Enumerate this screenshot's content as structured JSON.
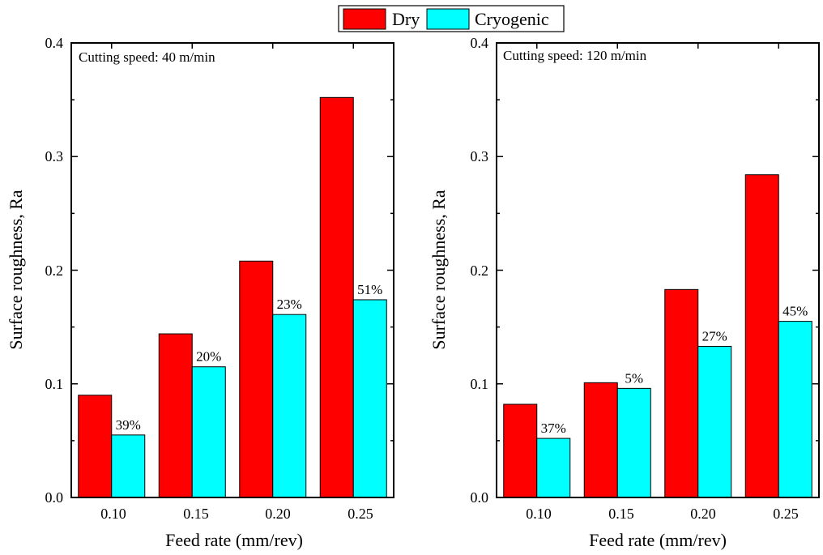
{
  "legend": {
    "items": [
      {
        "label": "Dry",
        "color": "#ff0000"
      },
      {
        "label": "Cryogenic",
        "color": "#00ffff"
      }
    ],
    "position": "top-center"
  },
  "chart_data": [
    {
      "type": "bar",
      "annotation": "Cutting speed: 40 m/min",
      "xlabel": "Feed rate (mm/rev)",
      "ylabel": "Surface roughness, Ra",
      "categories": [
        "0.10",
        "0.15",
        "0.20",
        "0.25"
      ],
      "series": [
        {
          "name": "Dry",
          "color": "#ff0000",
          "values": [
            0.09,
            0.144,
            0.208,
            0.352
          ]
        },
        {
          "name": "Cryogenic",
          "color": "#00ffff",
          "values": [
            0.055,
            0.115,
            0.161,
            0.174
          ]
        }
      ],
      "data_labels": [
        "39%",
        "20%",
        "23%",
        "51%"
      ],
      "ylim": [
        0,
        0.4
      ],
      "yticks": [
        "0.0",
        "0.1",
        "0.2",
        "0.3",
        "0.4"
      ],
      "grid": false
    },
    {
      "type": "bar",
      "annotation": "Cutting speed: 120 m/min",
      "xlabel": "Feed rate (mm/rev)",
      "ylabel": "Surface roughness, Ra",
      "categories": [
        "0.10",
        "0.15",
        "0.20",
        "0.25"
      ],
      "series": [
        {
          "name": "Dry",
          "color": "#ff0000",
          "values": [
            0.082,
            0.101,
            0.183,
            0.284
          ]
        },
        {
          "name": "Cryogenic",
          "color": "#00ffff",
          "values": [
            0.052,
            0.096,
            0.133,
            0.155
          ]
        }
      ],
      "data_labels": [
        "37%",
        "5%",
        "27%",
        "45%"
      ],
      "ylim": [
        0,
        0.4
      ],
      "yticks": [
        "0.0",
        "0.1",
        "0.2",
        "0.3",
        "0.4"
      ],
      "grid": false
    }
  ]
}
